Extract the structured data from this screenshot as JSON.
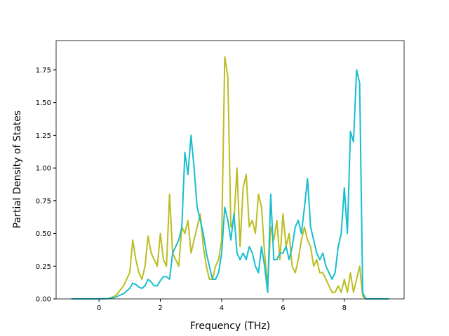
{
  "chart_data": {
    "type": "line",
    "xlabel": "Frequency (THz)",
    "ylabel": "Partial Density of States",
    "xlim": [
      -1.4,
      9.95
    ],
    "ylim": [
      0,
      1.974
    ],
    "xticks": [
      0,
      2,
      4,
      6,
      8
    ],
    "yticks": [
      {
        "value": 0,
        "label": "0.00"
      },
      {
        "value": 0.25,
        "label": "0.25"
      },
      {
        "value": 0.5,
        "label": "0.50"
      },
      {
        "value": 0.75,
        "label": "0.75"
      },
      {
        "value": 1,
        "label": "1.00"
      },
      {
        "value": 1.25,
        "label": "1.25"
      },
      {
        "value": 1.5,
        "label": "1.50"
      },
      {
        "value": 1.75,
        "label": "1.75"
      }
    ],
    "x": [
      -0.9,
      0,
      0.3,
      0.5,
      0.6,
      0.7,
      0.8,
      0.9,
      1.0,
      1.1,
      1.2,
      1.3,
      1.4,
      1.5,
      1.6,
      1.7,
      1.8,
      1.9,
      2.0,
      2.1,
      2.2,
      2.3,
      2.4,
      2.5,
      2.6,
      2.7,
      2.8,
      2.9,
      3.0,
      3.1,
      3.2,
      3.3,
      3.4,
      3.5,
      3.6,
      3.7,
      3.8,
      3.9,
      4.0,
      4.1,
      4.2,
      4.3,
      4.4,
      4.5,
      4.6,
      4.7,
      4.8,
      4.9,
      5.0,
      5.1,
      5.2,
      5.3,
      5.4,
      5.5,
      5.6,
      5.7,
      5.8,
      5.9,
      6.0,
      6.1,
      6.2,
      6.3,
      6.4,
      6.5,
      6.6,
      6.7,
      6.8,
      6.9,
      7.0,
      7.1,
      7.2,
      7.3,
      7.4,
      7.5,
      7.6,
      7.7,
      7.8,
      7.9,
      8.0,
      8.1,
      8.2,
      8.3,
      8.4,
      8.5,
      8.6,
      8.7,
      9.45
    ],
    "series": [
      {
        "color": "#bcbd22",
        "values": [
          0,
          0,
          0.003,
          0.02,
          0.04,
          0.07,
          0.1,
          0.15,
          0.2,
          0.45,
          0.3,
          0.2,
          0.15,
          0.25,
          0.48,
          0.35,
          0.3,
          0.25,
          0.5,
          0.3,
          0.25,
          0.8,
          0.35,
          0.3,
          0.25,
          0.55,
          0.5,
          0.6,
          0.35,
          0.45,
          0.55,
          0.65,
          0.4,
          0.25,
          0.15,
          0.15,
          0.25,
          0.3,
          0.45,
          1.85,
          1.7,
          0.55,
          0.6,
          1.0,
          0.4,
          0.85,
          0.95,
          0.55,
          0.6,
          0.5,
          0.8,
          0.7,
          0.35,
          0.1,
          0.55,
          0.45,
          0.6,
          0.3,
          0.65,
          0.4,
          0.5,
          0.25,
          0.2,
          0.3,
          0.45,
          0.55,
          0.45,
          0.4,
          0.25,
          0.3,
          0.2,
          0.2,
          0.15,
          0.1,
          0.05,
          0.05,
          0.1,
          0.05,
          0.15,
          0.05,
          0.2,
          0.05,
          0.15,
          0.25,
          0.02,
          0,
          0
        ]
      },
      {
        "color": "#17becf",
        "values": [
          0,
          0,
          0.003,
          0.01,
          0.02,
          0.03,
          0.04,
          0.06,
          0.08,
          0.12,
          0.11,
          0.09,
          0.08,
          0.1,
          0.15,
          0.13,
          0.1,
          0.1,
          0.14,
          0.17,
          0.17,
          0.15,
          0.35,
          0.4,
          0.45,
          0.55,
          1.12,
          0.95,
          1.25,
          1.0,
          0.7,
          0.6,
          0.5,
          0.35,
          0.25,
          0.15,
          0.15,
          0.2,
          0.35,
          0.7,
          0.6,
          0.45,
          0.65,
          0.35,
          0.3,
          0.35,
          0.3,
          0.4,
          0.35,
          0.25,
          0.2,
          0.4,
          0.25,
          0.05,
          0.8,
          0.3,
          0.3,
          0.35,
          0.35,
          0.4,
          0.3,
          0.4,
          0.55,
          0.6,
          0.5,
          0.7,
          0.92,
          0.55,
          0.45,
          0.35,
          0.3,
          0.35,
          0.25,
          0.2,
          0.15,
          0.2,
          0.4,
          0.5,
          0.85,
          0.5,
          1.28,
          1.2,
          1.75,
          1.65,
          0.05,
          0,
          0
        ]
      }
    ]
  }
}
